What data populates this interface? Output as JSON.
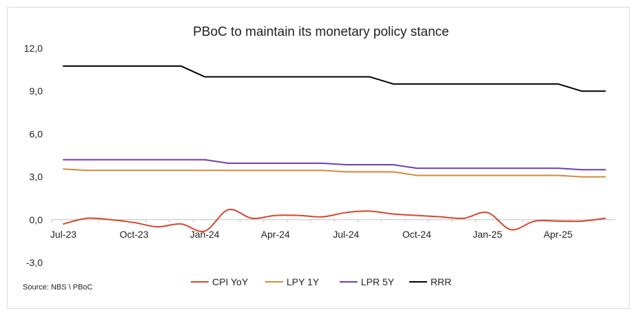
{
  "chart_data": {
    "type": "line",
    "title": "PBoC to maintain its monetary policy stance",
    "source": "Source: NBS \\ PBoC",
    "xlabel": "",
    "ylabel": "",
    "ylim": [
      -3,
      12
    ],
    "yticks": [
      "-3,0",
      "0,0",
      "3,0",
      "6,0",
      "9,0",
      "12,0"
    ],
    "xtick_labels": [
      "Jul-23",
      "Oct-23",
      "Jan-24",
      "Apr-24",
      "Jul-24",
      "Oct-24",
      "Jan-25",
      "Apr-25"
    ],
    "x": [
      "Jul-23",
      "Aug-23",
      "Sep-23",
      "Oct-23",
      "Nov-23",
      "Dec-23",
      "Jan-24",
      "Feb-24",
      "Mar-24",
      "Apr-24",
      "May-24",
      "Jun-24",
      "Jul-24",
      "Aug-24",
      "Sep-24",
      "Oct-24",
      "Nov-24",
      "Dec-24",
      "Jan-25",
      "Feb-25",
      "Mar-25",
      "Apr-25",
      "May-25",
      "Jun-25"
    ],
    "grid": false,
    "legend_position": "bottom",
    "series": [
      {
        "name": "CPI YoY",
        "color": "#d6452b",
        "smooth": true,
        "values": [
          -0.3,
          0.1,
          0.0,
          -0.2,
          -0.5,
          -0.3,
          -0.8,
          0.7,
          0.1,
          0.3,
          0.3,
          0.2,
          0.5,
          0.6,
          0.4,
          0.3,
          0.2,
          0.1,
          0.5,
          -0.7,
          -0.1,
          -0.1,
          -0.1,
          0.1
        ]
      },
      {
        "name": "LPY 1Y",
        "color": "#d4893a",
        "values": [
          3.55,
          3.45,
          3.45,
          3.45,
          3.45,
          3.45,
          3.45,
          3.45,
          3.45,
          3.45,
          3.45,
          3.45,
          3.35,
          3.35,
          3.35,
          3.1,
          3.1,
          3.1,
          3.1,
          3.1,
          3.1,
          3.1,
          3.0,
          3.0
        ]
      },
      {
        "name": "LPR 5Y",
        "color": "#6a3fb5",
        "values": [
          4.2,
          4.2,
          4.2,
          4.2,
          4.2,
          4.2,
          4.2,
          3.95,
          3.95,
          3.95,
          3.95,
          3.95,
          3.85,
          3.85,
          3.85,
          3.6,
          3.6,
          3.6,
          3.6,
          3.6,
          3.6,
          3.6,
          3.5,
          3.5
        ]
      },
      {
        "name": "RRR",
        "color": "#000000",
        "values": [
          10.75,
          10.75,
          10.75,
          10.75,
          10.75,
          10.75,
          10.0,
          10.0,
          10.0,
          10.0,
          10.0,
          10.0,
          10.0,
          10.0,
          9.5,
          9.5,
          9.5,
          9.5,
          9.5,
          9.5,
          9.5,
          9.5,
          9.0,
          9.0
        ]
      }
    ]
  }
}
